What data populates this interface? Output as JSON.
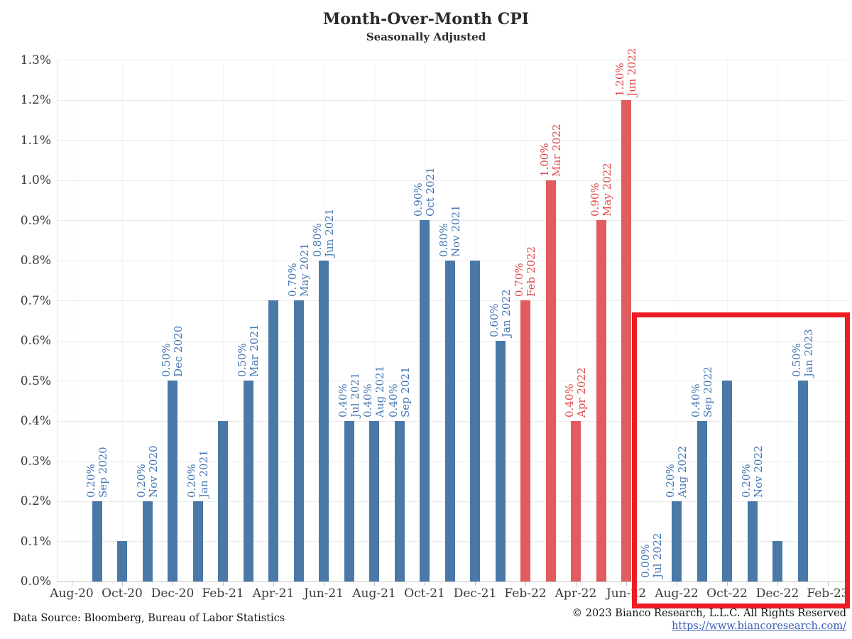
{
  "title": "Month-Over-Month CPI",
  "subtitle": "Seasonally Adjusted",
  "footer": {
    "source": "Data Source: Bloomberg, Bureau of Labor Statistics",
    "copyright": "© 2023 Bianco Research, L.L.C. All Rights Reserved",
    "link": "https://www.biancoresearch.com/"
  },
  "colors": {
    "bar_blue": "#4a79a8",
    "bar_red": "#e05c5e",
    "label_blue": "#4677b4",
    "label_red": "#e14b4b",
    "highlight_red": "#ec1c24",
    "hgrid": "#ebebeb",
    "vgrid": "#f5f5f5",
    "axis_line": "#c8c8c8",
    "tick": "#bfbfbf",
    "text": "#3a3a3a",
    "link": "#3a5dbb"
  },
  "chart_data": {
    "type": "bar",
    "title": "Month-Over-Month CPI",
    "subtitle": "Seasonally Adjusted",
    "ylabel": "",
    "xlabel": "",
    "ylim": [
      0.0,
      1.3
    ],
    "grid": true,
    "yticks": [
      "0.0%",
      "0.1%",
      "0.2%",
      "0.3%",
      "0.4%",
      "0.5%",
      "0.6%",
      "0.7%",
      "0.8%",
      "0.9%",
      "1.0%",
      "1.1%",
      "1.2%",
      "1.3%"
    ],
    "xticks": [
      "Aug-20",
      "Oct-20",
      "Dec-20",
      "Feb-21",
      "Apr-21",
      "Jun-21",
      "Aug-21",
      "Oct-21",
      "Dec-21",
      "Feb-22",
      "Apr-22",
      "Jun-22",
      "Aug-22",
      "Oct-22",
      "Dec-22",
      "Feb-23"
    ],
    "x_axis_start_month": "Aug 2020",
    "points": [
      {
        "month": "Sep 2020",
        "value": 0.2,
        "value_label": "0.20%",
        "show_label": true,
        "series": "blue"
      },
      {
        "month": "Oct 2020",
        "value": 0.1,
        "value_label": null,
        "show_label": false,
        "series": "blue"
      },
      {
        "month": "Nov 2020",
        "value": 0.2,
        "value_label": "0.20%",
        "show_label": true,
        "series": "blue"
      },
      {
        "month": "Dec 2020",
        "value": 0.5,
        "value_label": "0.50%",
        "show_label": true,
        "series": "blue"
      },
      {
        "month": "Jan 2021",
        "value": 0.2,
        "value_label": "0.20%",
        "show_label": true,
        "series": "blue"
      },
      {
        "month": "Feb 2021",
        "value": 0.4,
        "value_label": null,
        "show_label": false,
        "series": "blue"
      },
      {
        "month": "Mar 2021",
        "value": 0.5,
        "value_label": "0.50%",
        "show_label": true,
        "series": "blue"
      },
      {
        "month": "Apr 2021",
        "value": 0.7,
        "value_label": null,
        "show_label": false,
        "series": "blue"
      },
      {
        "month": "May 2021",
        "value": 0.7,
        "value_label": "0.70%",
        "show_label": true,
        "series": "blue"
      },
      {
        "month": "Jun 2021",
        "value": 0.8,
        "value_label": "0.80%",
        "show_label": true,
        "series": "blue"
      },
      {
        "month": "Jul 2021",
        "value": 0.4,
        "value_label": "0.40%",
        "show_label": true,
        "series": "blue"
      },
      {
        "month": "Aug 2021",
        "value": 0.4,
        "value_label": "0.40%",
        "show_label": true,
        "series": "blue"
      },
      {
        "month": "Sep 2021",
        "value": 0.4,
        "value_label": "0.40%",
        "show_label": true,
        "series": "blue"
      },
      {
        "month": "Oct 2021",
        "value": 0.9,
        "value_label": "0.90%",
        "show_label": true,
        "series": "blue"
      },
      {
        "month": "Nov 2021",
        "value": 0.8,
        "value_label": "0.80%",
        "show_label": true,
        "series": "blue"
      },
      {
        "month": "Dec 2021",
        "value": 0.8,
        "value_label": null,
        "show_label": false,
        "series": "blue"
      },
      {
        "month": "Jan 2022",
        "value": 0.6,
        "value_label": "0.60%",
        "show_label": true,
        "series": "blue"
      },
      {
        "month": "Feb 2022",
        "value": 0.7,
        "value_label": "0.70%",
        "show_label": true,
        "series": "red"
      },
      {
        "month": "Mar 2022",
        "value": 1.0,
        "value_label": "1.00%",
        "show_label": true,
        "series": "red"
      },
      {
        "month": "Apr 2022",
        "value": 0.4,
        "value_label": "0.40%",
        "show_label": true,
        "series": "red"
      },
      {
        "month": "May 2022",
        "value": 0.9,
        "value_label": "0.90%",
        "show_label": true,
        "series": "red"
      },
      {
        "month": "Jun 2022",
        "value": 1.2,
        "value_label": "1.20%",
        "show_label": true,
        "series": "red"
      },
      {
        "month": "Jul 2022",
        "value": 0.0,
        "value_label": "0.00%",
        "show_label": true,
        "series": "blue"
      },
      {
        "month": "Aug 2022",
        "value": 0.2,
        "value_label": "0.20%",
        "show_label": true,
        "series": "blue"
      },
      {
        "month": "Sep 2022",
        "value": 0.4,
        "value_label": "0.40%",
        "show_label": true,
        "series": "blue"
      },
      {
        "month": "Oct 2022",
        "value": 0.5,
        "value_label": null,
        "show_label": false,
        "series": "blue"
      },
      {
        "month": "Nov 2022",
        "value": 0.2,
        "value_label": "0.20%",
        "show_label": true,
        "series": "blue"
      },
      {
        "month": "Dec 2022",
        "value": 0.1,
        "value_label": null,
        "show_label": false,
        "series": "blue"
      },
      {
        "month": "Jan 2023",
        "value": 0.5,
        "value_label": "0.50%",
        "show_label": true,
        "series": "blue"
      }
    ],
    "highlight_box": {
      "from_month": "Jul 2022",
      "to_month": "Feb 2023",
      "color": "#ec1c24"
    }
  }
}
